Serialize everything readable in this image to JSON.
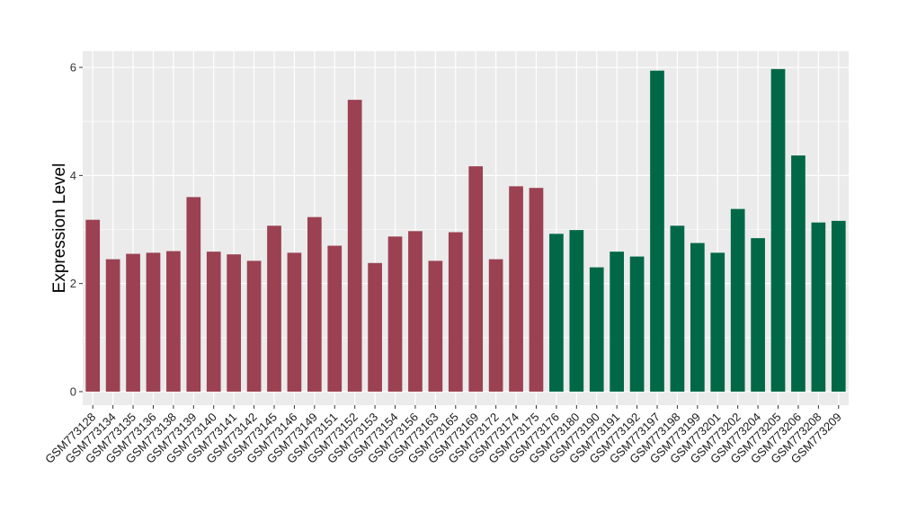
{
  "chart_data": {
    "type": "bar",
    "title": "",
    "xlabel": "",
    "ylabel": "Expression Level",
    "ylim": [
      -0.25,
      6.3
    ],
    "yticks": [
      0,
      2,
      4,
      6
    ],
    "grid": true,
    "legend": "none",
    "colors": {
      "group1": "#9B4151",
      "group2": "#006846",
      "panel": "#EBEBEB",
      "gridline": "#FFFFFF"
    },
    "categories": [
      "GSM773128",
      "GSM773134",
      "GSM773135",
      "GSM773136",
      "GSM773138",
      "GSM773139",
      "GSM773140",
      "GSM773141",
      "GSM773142",
      "GSM773145",
      "GSM773146",
      "GSM773149",
      "GSM773151",
      "GSM773152",
      "GSM773153",
      "GSM773154",
      "GSM773156",
      "GSM773163",
      "GSM773165",
      "GSM773169",
      "GSM773172",
      "GSM773174",
      "GSM773175",
      "GSM773176",
      "GSM773180",
      "GSM773190",
      "GSM773191",
      "GSM773192",
      "GSM773197",
      "GSM773198",
      "GSM773199",
      "GSM773201",
      "GSM773202",
      "GSM773204",
      "GSM773205",
      "GSM773206",
      "GSM773208",
      "GSM773209"
    ],
    "values": [
      3.18,
      2.45,
      2.55,
      2.57,
      2.6,
      3.6,
      2.59,
      2.54,
      2.42,
      3.07,
      2.57,
      3.23,
      2.7,
      5.4,
      2.38,
      2.87,
      2.97,
      2.42,
      2.95,
      4.17,
      2.45,
      3.8,
      3.77,
      2.92,
      2.99,
      2.3,
      2.59,
      2.5,
      5.94,
      3.07,
      2.75,
      2.57,
      3.38,
      2.84,
      5.97,
      4.37,
      3.13,
      3.16
    ],
    "groups": [
      1,
      1,
      1,
      1,
      1,
      1,
      1,
      1,
      1,
      1,
      1,
      1,
      1,
      1,
      1,
      1,
      1,
      1,
      1,
      1,
      1,
      1,
      1,
      2,
      2,
      2,
      2,
      2,
      2,
      2,
      2,
      2,
      2,
      2,
      2,
      2,
      2,
      2
    ]
  }
}
